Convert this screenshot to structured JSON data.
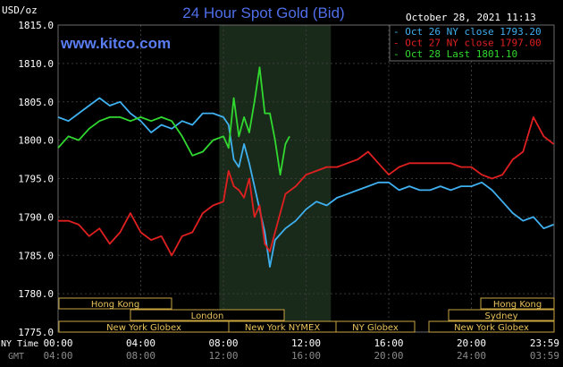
{
  "header": {
    "title": "24 Hour Spot Gold (Bid)",
    "site": "www.kitco.com",
    "timestamp": "October 28, 2021 11:13",
    "unit": "USD/oz",
    "nytime_label": "NY Time",
    "gmt_label": "GMT"
  },
  "colors": {
    "background": "#000000",
    "grid": "#3a3a3a",
    "highlight": "#1a2a1a",
    "series": [
      "#3fb0f0",
      "#e02020",
      "#30d830"
    ],
    "session_border": "#c8a640"
  },
  "sessions": [
    {
      "label": "Hong Kong",
      "row": 0
    },
    {
      "label": "London",
      "row": 1
    },
    {
      "label": "New York Globex",
      "row": 2
    },
    {
      "label": "New York NYMEX",
      "row": 2
    },
    {
      "label": "NY Globex",
      "row": 2
    },
    {
      "label": "Hong Kong",
      "row": 0
    },
    {
      "label": "Sydney",
      "row": 1
    },
    {
      "label": "New York Globex",
      "row": 2
    }
  ],
  "chart_data": {
    "type": "line",
    "title": "24 Hour Spot Gold (Bid)",
    "ylabel": "USD/oz",
    "ylim": [
      1775.0,
      1815.0
    ],
    "yticks": [
      "1815.0",
      "1810.0",
      "1805.0",
      "1800.0",
      "1795.0",
      "1790.0",
      "1785.0",
      "1780.0",
      "1775.0"
    ],
    "xlim": [
      0,
      24
    ],
    "xticks_ny": [
      "00:00",
      "04:00",
      "08:00",
      "12:00",
      "16:00",
      "20:00",
      "23:59"
    ],
    "xticks_gmt": [
      "04:00",
      "08:00",
      "12:00",
      "16:00",
      "20:00",
      "24:00",
      "03:59"
    ],
    "grid": true,
    "legend": "top-right",
    "highlight_range": [
      7.8,
      13.2
    ],
    "series": [
      {
        "name": "Oct 26 NY close 1793.20",
        "x": [
          0,
          0.5,
          1,
          1.5,
          2,
          2.5,
          3,
          3.5,
          4,
          4.5,
          5,
          5.5,
          6,
          6.5,
          7,
          7.5,
          8,
          8.25,
          8.5,
          8.75,
          9,
          9.25,
          9.5,
          9.75,
          10,
          10.25,
          10.5,
          11,
          11.5,
          12,
          12.5,
          13,
          13.5,
          14,
          14.5,
          15,
          15.5,
          16,
          16.5,
          17,
          17.5,
          18,
          18.5,
          19,
          19.5,
          20,
          20.5,
          21,
          21.5,
          22,
          22.5,
          23,
          23.5,
          23.98
        ],
        "y": [
          1803.0,
          1802.5,
          1803.5,
          1804.5,
          1805.5,
          1804.5,
          1805.0,
          1803.5,
          1802.5,
          1801.0,
          1802.0,
          1801.5,
          1802.5,
          1802.0,
          1803.5,
          1803.5,
          1803.0,
          1802.0,
          1797.5,
          1796.5,
          1799.5,
          1797.0,
          1794.0,
          1791.0,
          1788.0,
          1783.5,
          1787.0,
          1788.5,
          1789.5,
          1791.0,
          1792.0,
          1791.5,
          1792.5,
          1793.0,
          1793.5,
          1794.0,
          1794.5,
          1794.5,
          1793.5,
          1794.0,
          1793.5,
          1793.5,
          1794.0,
          1793.5,
          1794.0,
          1794.0,
          1794.5,
          1793.5,
          1792.0,
          1790.5,
          1789.5,
          1790.0,
          1788.5,
          1789.0
        ]
      },
      {
        "name": "Oct 27 NY close 1797.00",
        "x": [
          0,
          0.5,
          1,
          1.5,
          2,
          2.5,
          3,
          3.5,
          4,
          4.5,
          5,
          5.5,
          6,
          6.5,
          7,
          7.5,
          8,
          8.25,
          8.5,
          8.75,
          9,
          9.25,
          9.5,
          9.75,
          10,
          10.25,
          10.5,
          11,
          11.5,
          12,
          12.5,
          13,
          13.5,
          14,
          14.5,
          15,
          15.5,
          16,
          16.5,
          17,
          17.5,
          18,
          18.5,
          19,
          19.5,
          20,
          20.5,
          21,
          21.5,
          22,
          22.5,
          23,
          23.5,
          23.98
        ],
        "y": [
          1789.5,
          1789.5,
          1789.0,
          1787.5,
          1788.5,
          1786.5,
          1788.0,
          1790.5,
          1788.0,
          1787.0,
          1787.5,
          1785.0,
          1787.5,
          1788.0,
          1790.5,
          1791.5,
          1792.0,
          1796.0,
          1794.0,
          1793.5,
          1792.5,
          1795.0,
          1790.0,
          1791.5,
          1786.5,
          1785.5,
          1788.0,
          1793.0,
          1794.0,
          1795.5,
          1796.0,
          1796.5,
          1796.5,
          1797.0,
          1797.5,
          1798.5,
          1797.0,
          1795.5,
          1796.5,
          1797.0,
          1797.0,
          1797.0,
          1797.0,
          1797.0,
          1796.5,
          1796.5,
          1795.5,
          1795.0,
          1795.5,
          1797.5,
          1798.5,
          1803.0,
          1800.5,
          1799.5
        ]
      },
      {
        "name": "Oct 28 Last 1801.10",
        "x": [
          0,
          0.5,
          1,
          1.5,
          2,
          2.5,
          3,
          3.5,
          4,
          4.5,
          5,
          5.5,
          6,
          6.5,
          7,
          7.5,
          8,
          8.25,
          8.5,
          8.75,
          9,
          9.25,
          9.5,
          9.75,
          10,
          10.25,
          10.5,
          10.75,
          11,
          11.2
        ],
        "y": [
          1799.0,
          1800.5,
          1800.0,
          1801.5,
          1802.5,
          1803.0,
          1803.0,
          1802.5,
          1803.0,
          1802.5,
          1803.0,
          1802.5,
          1800.5,
          1798.0,
          1798.5,
          1800.0,
          1800.5,
          1799.0,
          1805.5,
          1800.5,
          1803.0,
          1801.0,
          1805.0,
          1809.5,
          1803.5,
          1803.5,
          1800.0,
          1795.5,
          1799.5,
          1800.5
        ]
      }
    ]
  }
}
